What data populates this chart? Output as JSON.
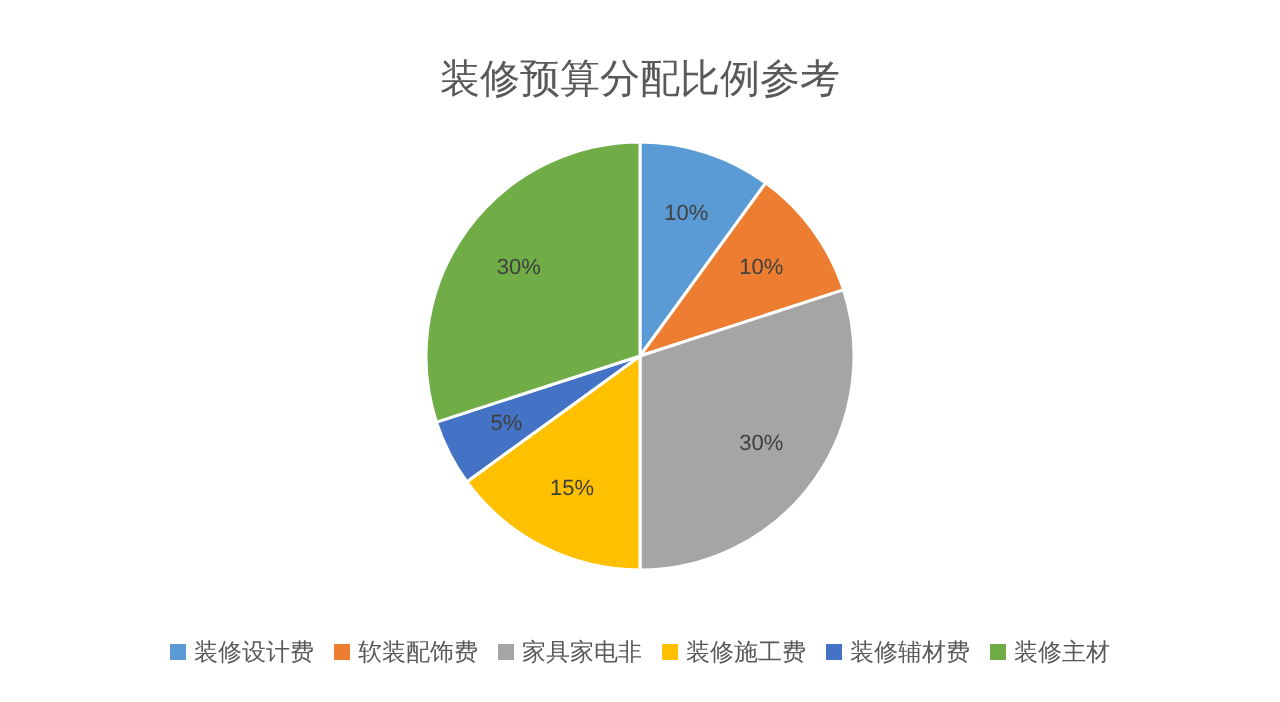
{
  "chart_data": {
    "type": "pie",
    "title": "装修预算分配比例参考",
    "categories": [
      "装修设计费",
      "软装配饰费",
      "家具家电非",
      "装修施工费",
      "装修辅材费",
      "装修主材"
    ],
    "values": [
      10,
      10,
      30,
      15,
      5,
      30
    ],
    "value_labels": [
      "10%",
      "10%",
      "30%",
      "15%",
      "5%",
      "30%"
    ],
    "colors": [
      "#5b9bd5",
      "#ed7d31",
      "#a5a5a5",
      "#ffc000",
      "#4472c4",
      "#70ad47"
    ],
    "legend": "bottom"
  }
}
